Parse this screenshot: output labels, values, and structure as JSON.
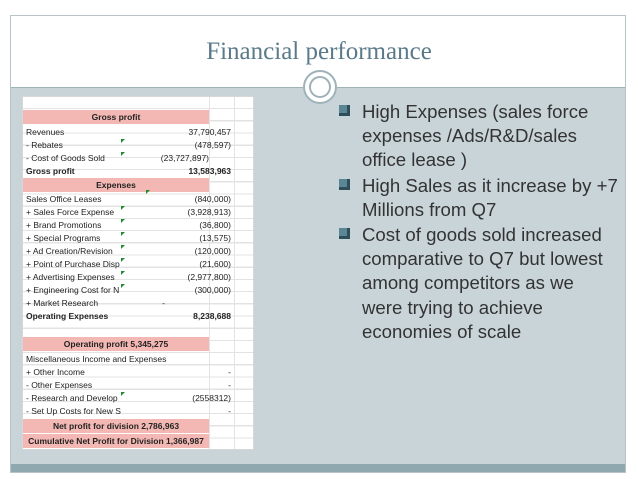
{
  "slide": {
    "title": "Financial performance"
  },
  "colors": {
    "band": "#f4b8b4",
    "background": "#c9d4d9",
    "title": "#5a7a8a",
    "bullet_box": "#5b8694",
    "cell_marker": "#1e8c2e"
  },
  "table": {
    "gross_profit_header": "Gross profit",
    "revenues": {
      "label": "Revenues",
      "value": "37,790,457"
    },
    "rebates": {
      "label": "- Rebates",
      "value": "(478,597)"
    },
    "cogs": {
      "label": "- Cost of Goods Sold",
      "value": "(23,727,897)"
    },
    "gross_profit": {
      "label": "Gross profit",
      "value": "13,583,963"
    },
    "expenses_header": "Expenses",
    "sales_office": {
      "label": "Sales Office Leases",
      "value": "(840,000)"
    },
    "sales_force": {
      "label": "+ Sales Force Expense",
      "value": "(3,928,913)"
    },
    "brand_promo": {
      "label": "+ Brand Promotions",
      "value": "(36,800)"
    },
    "special_programs": {
      "label": "+ Special Programs",
      "value": "(13,575)"
    },
    "ad_creation": {
      "label": "+ Ad Creation/Revision",
      "value": "(120,000)"
    },
    "pop_display": {
      "label": "+ Point of Purchase Disp",
      "value": "(21,600)"
    },
    "advertising": {
      "label": "+ Advertising Expenses",
      "value": "(2,977,800)"
    },
    "engineering": {
      "label": "+ Engineering Cost for N",
      "value": "(300,000)"
    },
    "market_research": {
      "label": "+ Market Research",
      "value": "-"
    },
    "operating_expenses": {
      "label": "Operating Expenses",
      "value": "8,238,688"
    },
    "operating_profit": "Operating profit  5,345,275",
    "misc_header": "Miscellaneous Income and Expenses",
    "other_income": {
      "label": "+ Other Income",
      "value": "-"
    },
    "other_expenses": {
      "label": "- Other Expenses",
      "value": "-"
    },
    "rnd": {
      "label": "- Research and Develop",
      "value": "(2558312)"
    },
    "setup_costs": {
      "label": "- Set Up Costs for New S",
      "value": "-"
    },
    "net_profit": "Net profit for division   2,786,963",
    "cumulative_net_profit": "Cumulative Net Profit for Division 1,366,987"
  },
  "bullets": [
    {
      "text": "High Expenses (sales force expenses /Ads/R&D/sales office lease )"
    },
    {
      "text": "High Sales as it increase by +7 Millions from Q7"
    },
    {
      "text": "Cost of goods sold increased comparative to Q7 but lowest among competitors as we were trying to achieve economies of scale"
    }
  ]
}
